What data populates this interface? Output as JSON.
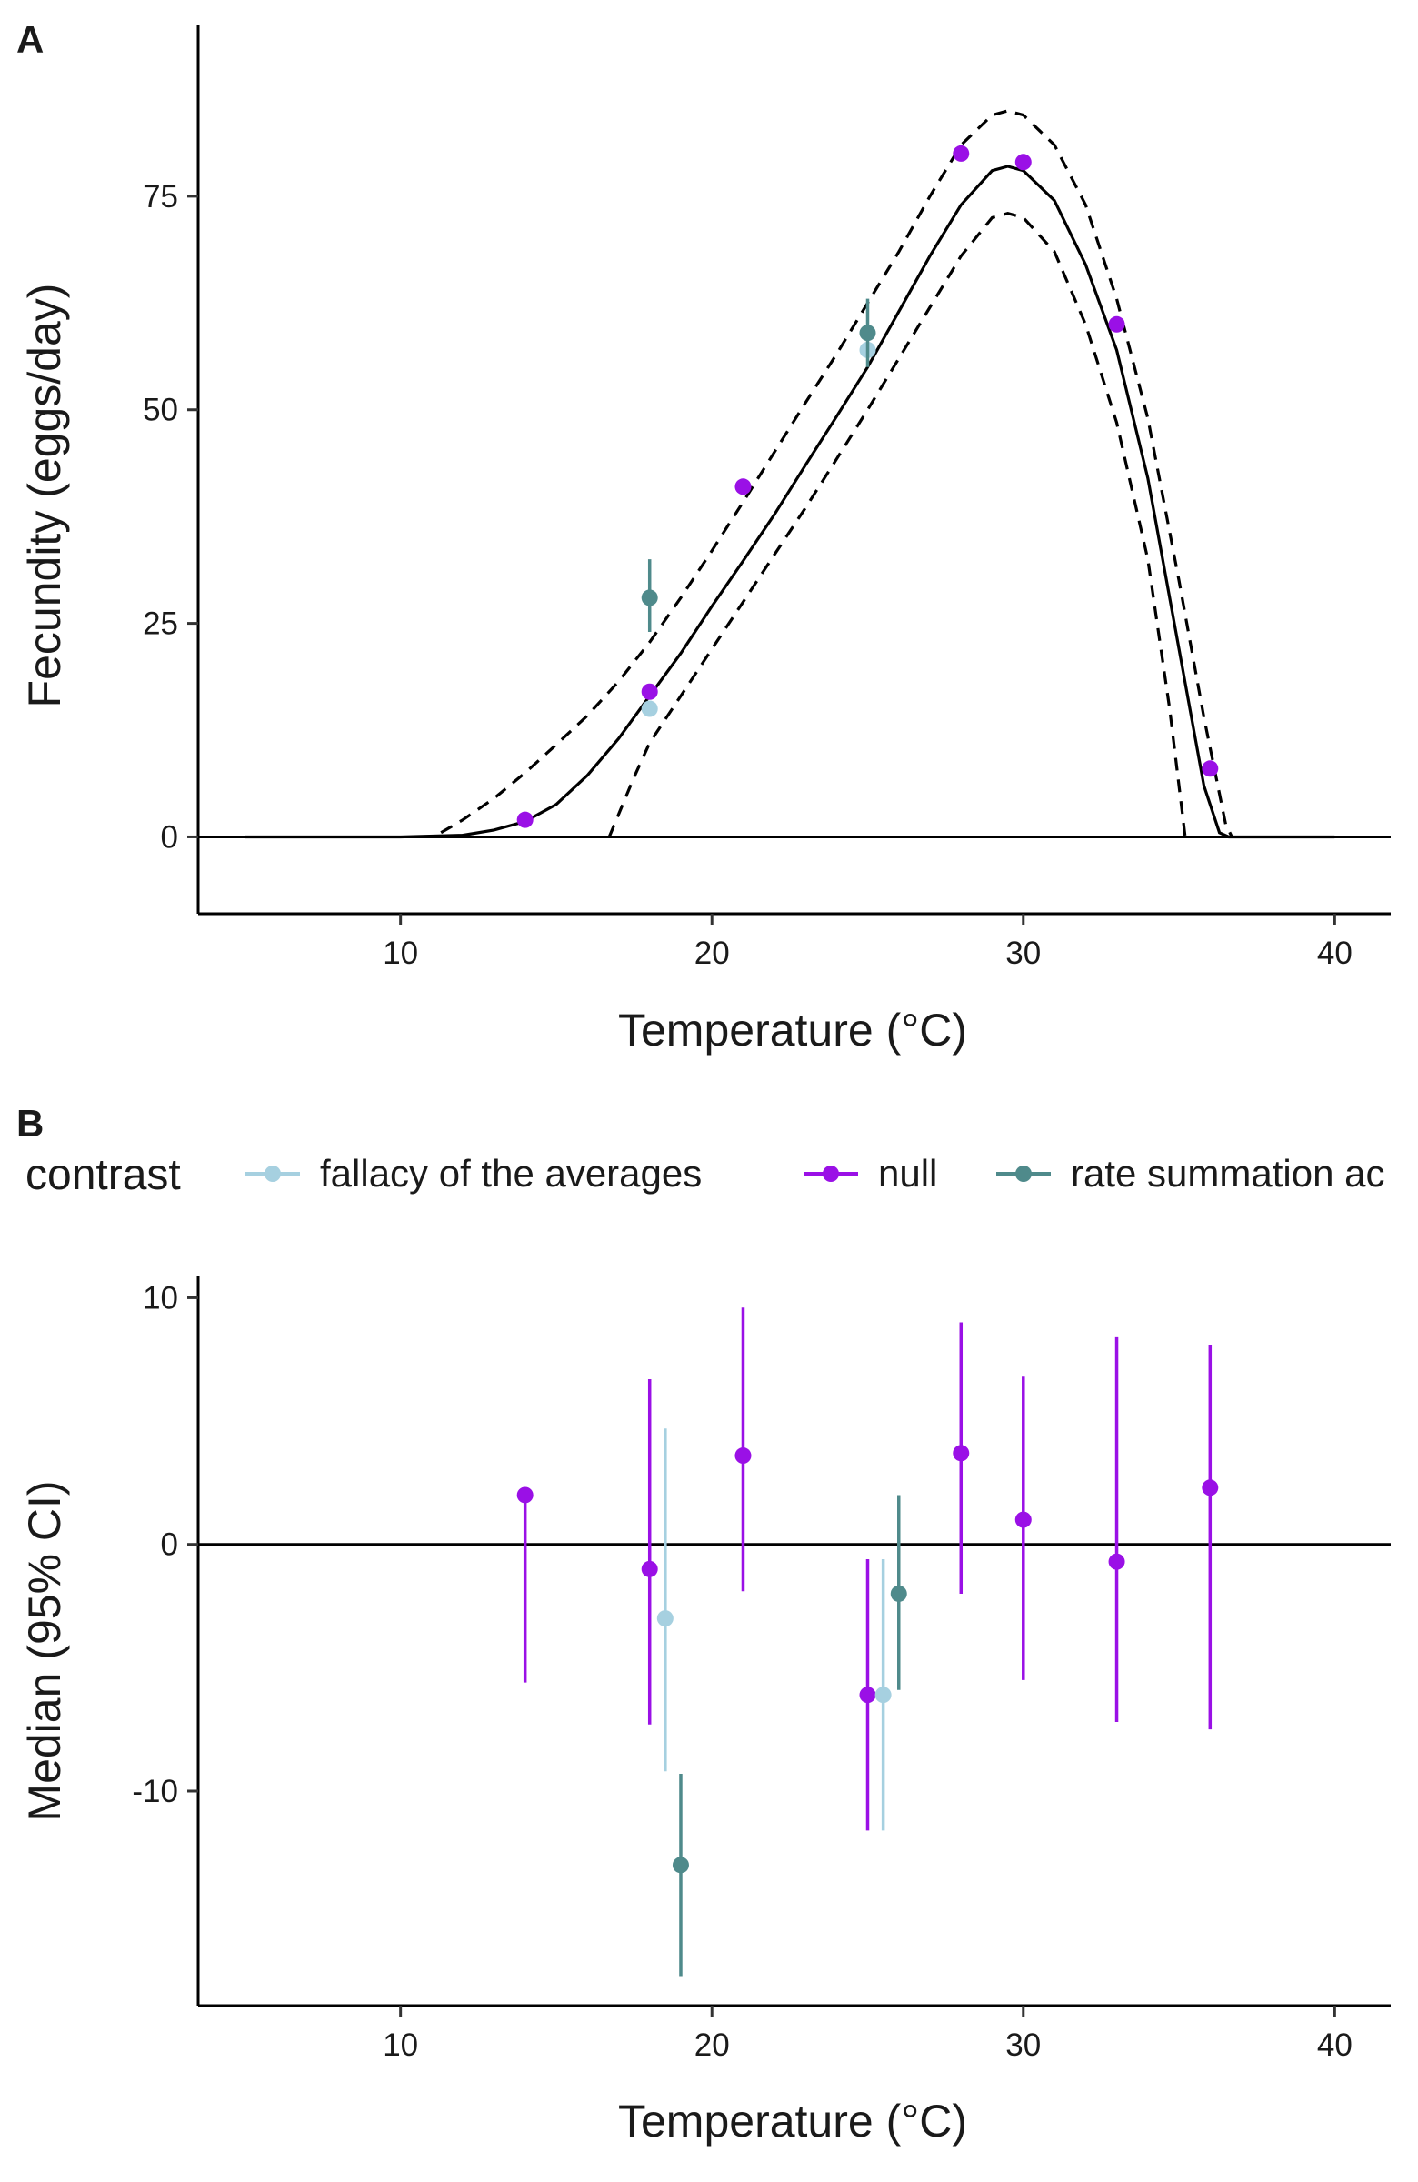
{
  "colors": {
    "fallacy": "#A6D0E0",
    "null": "#9A10E6",
    "rate": "#4F8A8B",
    "curve": "#000000"
  },
  "chart_data": [
    {
      "panel": "A",
      "type": "line",
      "xlabel": "Temperature (°C)",
      "ylabel": "Fecundity (eggs/day)",
      "xlim": [
        3.5,
        41.8
      ],
      "ylim": [
        -9,
        95
      ],
      "xticks": [
        10,
        20,
        30,
        40
      ],
      "yticks": [
        0,
        25,
        50,
        75
      ],
      "grid": false,
      "reference_line": 0,
      "curve": {
        "fit": [
          [
            5,
            0
          ],
          [
            10,
            0
          ],
          [
            12,
            0.2
          ],
          [
            13,
            0.8
          ],
          [
            14,
            1.8
          ],
          [
            15,
            3.8
          ],
          [
            16,
            7.2
          ],
          [
            17,
            11.5
          ],
          [
            18,
            16.5
          ],
          [
            19,
            21.5
          ],
          [
            20,
            27
          ],
          [
            21,
            32.3
          ],
          [
            22,
            37.7
          ],
          [
            23,
            43.5
          ],
          [
            24,
            49.2
          ],
          [
            25,
            55
          ],
          [
            26,
            61.5
          ],
          [
            27,
            68
          ],
          [
            28,
            74
          ],
          [
            29,
            78
          ],
          [
            29.5,
            78.5
          ],
          [
            30,
            78
          ],
          [
            31,
            74.5
          ],
          [
            32,
            67
          ],
          [
            33,
            57
          ],
          [
            34,
            42
          ],
          [
            35,
            22
          ],
          [
            35.8,
            6
          ],
          [
            36.3,
            0.5
          ],
          [
            36.6,
            0
          ],
          [
            40,
            0
          ]
        ],
        "upper": [
          [
            11.3,
            0.5
          ],
          [
            12,
            2
          ],
          [
            13,
            4.5
          ],
          [
            14,
            7.5
          ],
          [
            15,
            10.8
          ],
          [
            16,
            14.2
          ],
          [
            17,
            18.2
          ],
          [
            18,
            22.8
          ],
          [
            19,
            28
          ],
          [
            20,
            33.5
          ],
          [
            21,
            39.2
          ],
          [
            22,
            45
          ],
          [
            23,
            50.8
          ],
          [
            24,
            56.5
          ],
          [
            25,
            62.5
          ],
          [
            26,
            68.5
          ],
          [
            27,
            75
          ],
          [
            28,
            81
          ],
          [
            29,
            84.5
          ],
          [
            29.5,
            85
          ],
          [
            30,
            84.5
          ],
          [
            31,
            81
          ],
          [
            32,
            74
          ],
          [
            33,
            63
          ],
          [
            34,
            49
          ],
          [
            35,
            30
          ],
          [
            35.8,
            14
          ],
          [
            36.5,
            1.5
          ],
          [
            36.7,
            0
          ]
        ],
        "lower": [
          [
            16.7,
            0
          ],
          [
            17.5,
            7
          ],
          [
            18,
            11
          ],
          [
            19,
            16.5
          ],
          [
            20,
            22
          ],
          [
            21,
            27.5
          ],
          [
            22,
            33
          ],
          [
            23,
            38.5
          ],
          [
            24,
            44.2
          ],
          [
            25,
            50
          ],
          [
            26,
            56
          ],
          [
            27,
            62
          ],
          [
            28,
            68
          ],
          [
            29,
            72.5
          ],
          [
            29.5,
            73
          ],
          [
            30,
            72.5
          ],
          [
            31,
            68.5
          ],
          [
            32,
            60
          ],
          [
            33,
            48.5
          ],
          [
            34,
            32.5
          ],
          [
            34.7,
            15
          ],
          [
            35.1,
            3
          ],
          [
            35.2,
            0
          ]
        ]
      },
      "points": [
        {
          "contrast": "null",
          "x": 14,
          "y": 2
        },
        {
          "contrast": "null",
          "x": 18,
          "y": 17
        },
        {
          "contrast": "null",
          "x": 21,
          "y": 41
        },
        {
          "contrast": "null",
          "x": 28,
          "y": 80
        },
        {
          "contrast": "null",
          "x": 30,
          "y": 79
        },
        {
          "contrast": "null",
          "x": 33,
          "y": 60
        },
        {
          "contrast": "null",
          "x": 36,
          "y": 8
        },
        {
          "contrast": "fallacy",
          "x": 18,
          "y": 15
        },
        {
          "contrast": "fallacy",
          "x": 25,
          "y": 57
        },
        {
          "contrast": "rate",
          "x": 18,
          "y": 28,
          "low": 24,
          "high": 32.5
        },
        {
          "contrast": "rate",
          "x": 25,
          "y": 59,
          "low": 55,
          "high": 63
        }
      ]
    },
    {
      "panel": "B",
      "type": "scatter",
      "xlabel": "Temperature (°C)",
      "ylabel": "Median (95% CI)",
      "xlim": [
        3.5,
        41.8
      ],
      "ylim": [
        -18.7,
        10.9
      ],
      "xticks": [
        10,
        20,
        30,
        40
      ],
      "yticks": [
        -10,
        0,
        10
      ],
      "grid": false,
      "reference_line": 0,
      "legend": {
        "position": "top",
        "title": "contrast",
        "entries": [
          {
            "key": "fallacy",
            "label": "fallacy of the averages"
          },
          {
            "key": "null",
            "label": "null"
          },
          {
            "key": "rate",
            "label": "rate summation ac"
          }
        ]
      },
      "points": [
        {
          "contrast": "null",
          "x": 14,
          "y": 2,
          "low": -5.6,
          "high": 2
        },
        {
          "contrast": "null",
          "x": 18,
          "y": -1,
          "low": -7.3,
          "high": 6.7
        },
        {
          "contrast": "fallacy",
          "x": 18.5,
          "y": -3,
          "low": -9.2,
          "high": 4.7
        },
        {
          "contrast": "rate",
          "x": 19,
          "y": -13,
          "low": -17.5,
          "high": -9.3
        },
        {
          "contrast": "null",
          "x": 21,
          "y": 3.6,
          "low": -1.9,
          "high": 9.6
        },
        {
          "contrast": "null",
          "x": 25,
          "y": -6.1,
          "low": -11.6,
          "high": -0.6
        },
        {
          "contrast": "fallacy",
          "x": 25.5,
          "y": -6.1,
          "low": -11.6,
          "high": -0.6
        },
        {
          "contrast": "rate",
          "x": 26,
          "y": -2,
          "low": -5.9,
          "high": 2
        },
        {
          "contrast": "null",
          "x": 28,
          "y": 3.7,
          "low": -2,
          "high": 9
        },
        {
          "contrast": "null",
          "x": 30,
          "y": 1,
          "low": -5.5,
          "high": 6.8
        },
        {
          "contrast": "null",
          "x": 33,
          "y": -0.7,
          "low": -7.2,
          "high": 8.4
        },
        {
          "contrast": "null",
          "x": 36,
          "y": 2.3,
          "low": -7.5,
          "high": 8.1
        }
      ]
    }
  ]
}
